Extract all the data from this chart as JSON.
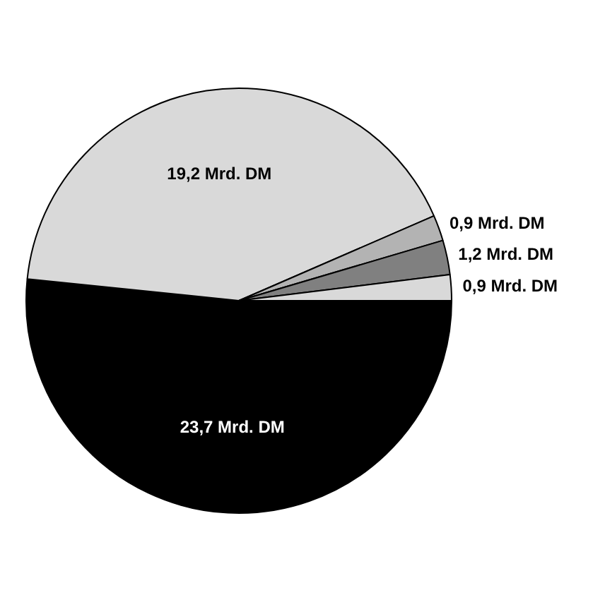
{
  "chart_data": {
    "type": "pie",
    "categories": [
      null,
      null,
      null,
      null,
      null
    ],
    "values": [
      23.7,
      19.2,
      0.9,
      1.2,
      0.9
    ],
    "value_labels": [
      "23,7 Mrd. DM",
      "19,2 Mrd. DM",
      "0,9 Mrd. DM",
      "1,2 Mrd. DM",
      "0,9 Mrd. DM"
    ],
    "colors": [
      "#000000",
      "#d9d9d9",
      "#b3b3b3",
      "#808080",
      "#d9d9d9"
    ],
    "legend": false
  }
}
